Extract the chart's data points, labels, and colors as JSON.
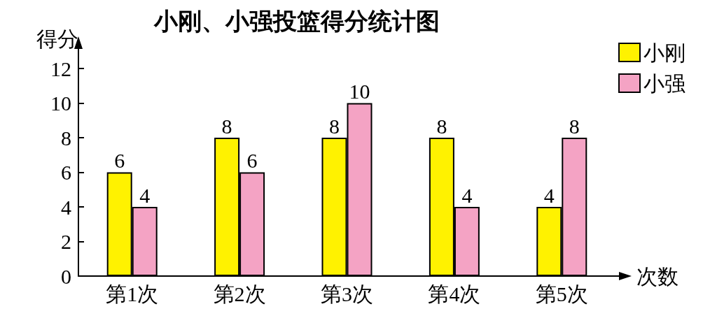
{
  "chart_data": {
    "type": "bar",
    "title": "小刚、小强投篮得分统计图",
    "xlabel": "次数",
    "ylabel": "得分",
    "categories": [
      "第1次",
      "第2次",
      "第3次",
      "第4次",
      "第5次"
    ],
    "series": [
      {
        "name": "小刚",
        "color": "#fff200",
        "values": [
          6,
          8,
          8,
          8,
          4
        ]
      },
      {
        "name": "小强",
        "color": "#f4a3c4",
        "values": [
          4,
          6,
          10,
          4,
          8
        ]
      }
    ],
    "ylim": [
      0,
      12
    ],
    "yticks": [
      0,
      2,
      4,
      6,
      8,
      10,
      12
    ],
    "grid": false,
    "legend": "top right",
    "data_labels": true
  }
}
